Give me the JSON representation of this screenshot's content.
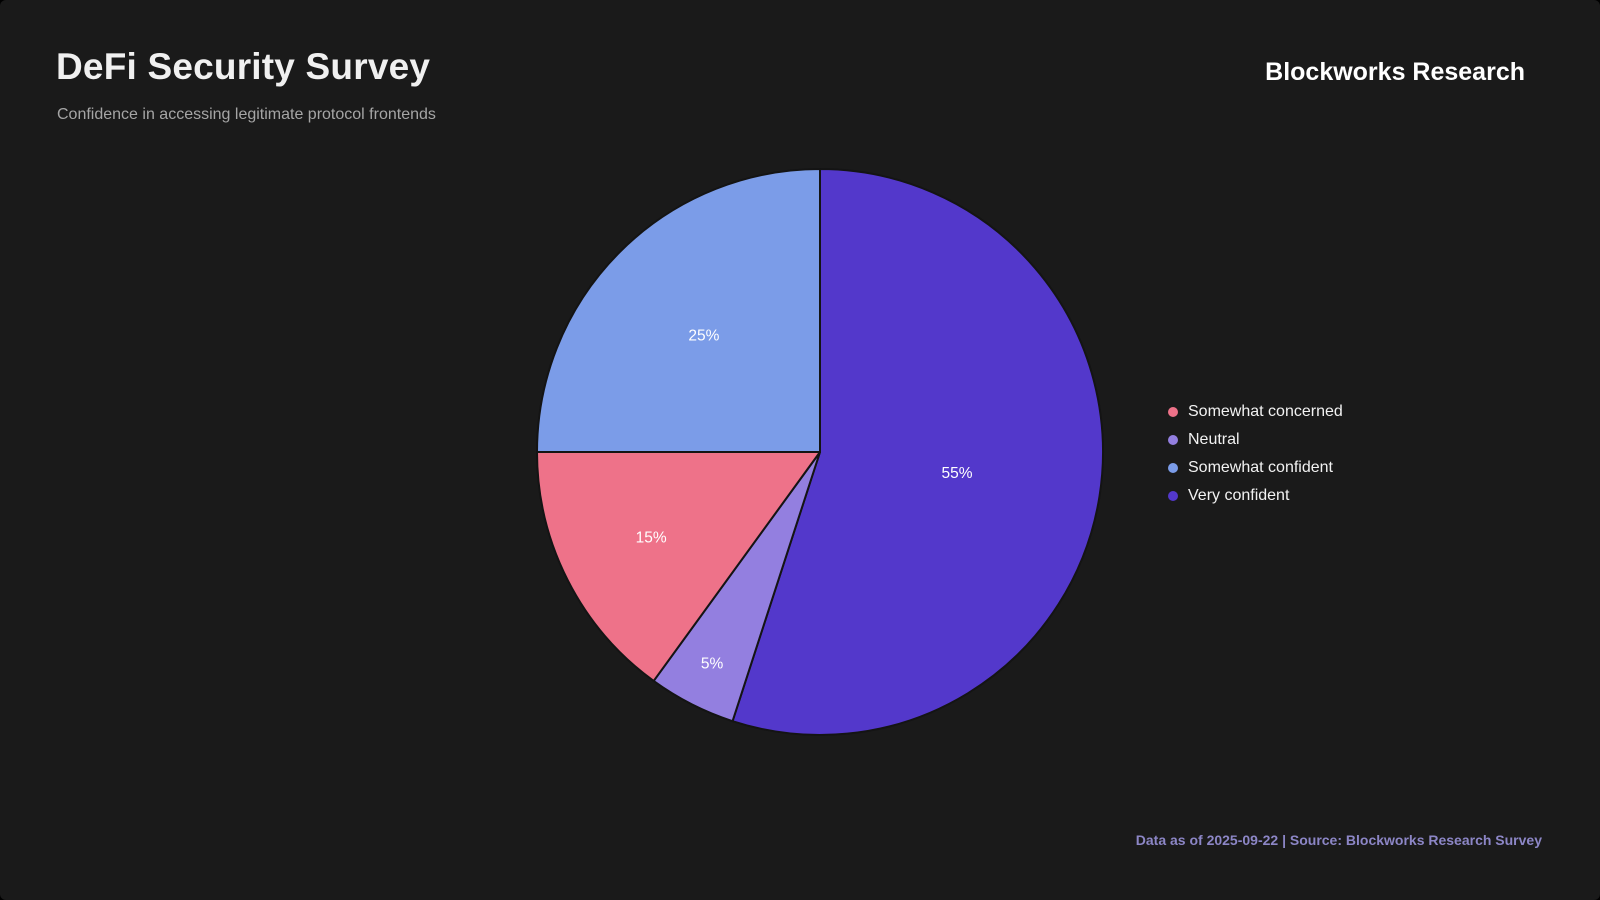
{
  "page": {
    "title": "DeFi Security Survey",
    "subtitle": "Confidence in accessing legitimate protocol frontends",
    "brand": "Blockworks Research",
    "footer": "Data as of 2025-09-22 | Source: Blockworks Research Survey"
  },
  "colors": {
    "background": "#1A1A1A",
    "title_text": "#F0F0F0",
    "subtitle_text": "#A5A5A5",
    "brand_text": "#FFFFFF",
    "footer_text": "#8C86C6",
    "slice_border": "#141414",
    "slice_label_text": "#FFFFFF"
  },
  "chart_data": {
    "type": "pie",
    "title": "DeFi Security Survey",
    "subtitle": "Confidence in accessing legitimate protocol frontends",
    "unit": "%",
    "start_angle_deg": 0,
    "direction": "clockwise",
    "legend_position": "right",
    "slices": [
      {
        "label": "Very confident",
        "value": 55,
        "display": "55%",
        "color": "#5338CB",
        "label_radius": 0.49
      },
      {
        "label": "Neutral",
        "value": 5,
        "display": "5%",
        "color": "#937FE0",
        "label_radius": 0.84
      },
      {
        "label": "Somewhat concerned",
        "value": 15,
        "display": "15%",
        "color": "#EE7289",
        "label_radius": 0.67
      },
      {
        "label": "Somewhat confident",
        "value": 25,
        "display": "25%",
        "color": "#7B9CE8",
        "label_radius": 0.58
      }
    ],
    "legend": [
      {
        "label": "Somewhat concerned",
        "color": "#EE7289"
      },
      {
        "label": "Neutral",
        "color": "#937FE0"
      },
      {
        "label": "Somewhat confident",
        "color": "#7B9CE8"
      },
      {
        "label": "Very confident",
        "color": "#5338CB"
      }
    ]
  }
}
